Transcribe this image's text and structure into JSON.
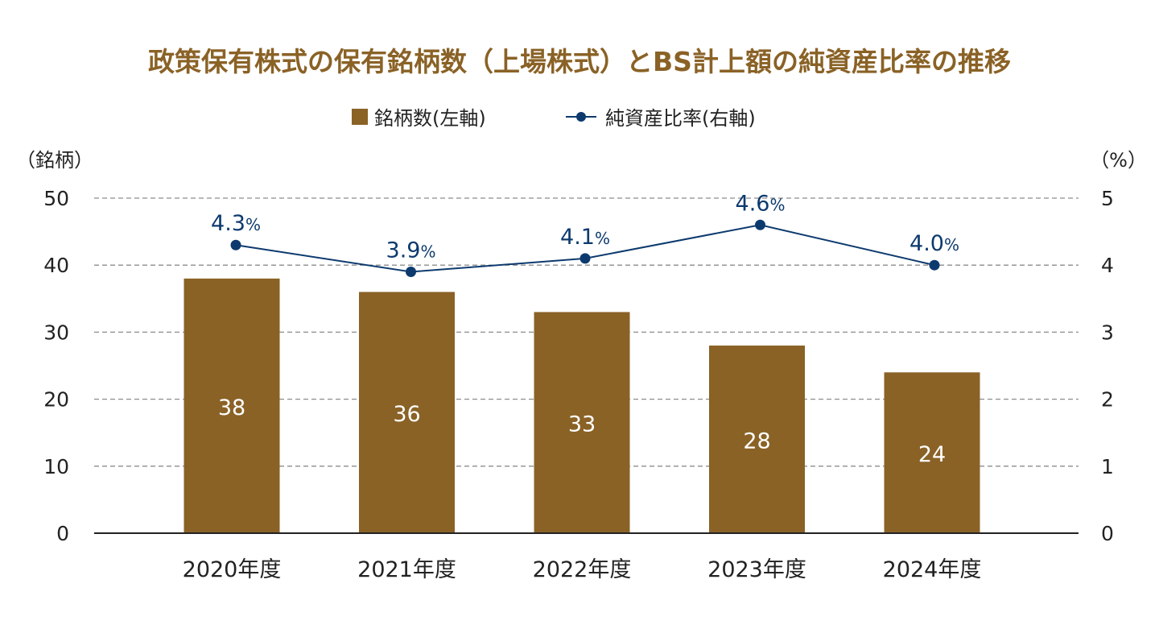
{
  "colors": {
    "title": "#8a6226",
    "bar": "#8a6226",
    "line": "#0d3a6e",
    "grid": "#8c8c8c",
    "axis": "#222222",
    "text": "#222222",
    "bar_label": "#ffffff"
  },
  "chart_data": {
    "type": "bar",
    "title": "政策保有株式の保有銘柄数（上場株式）とBS計上額の純資産比率の推移",
    "categories": [
      "2020年度",
      "2021年度",
      "2022年度",
      "2023年度",
      "2024年度"
    ],
    "legend": {
      "placement": "top-center",
      "items": [
        {
          "label": "銘柄数(左軸)",
          "marker": "square"
        },
        {
          "label": "純資産比率(右軸)",
          "marker": "line-dot"
        }
      ]
    },
    "y_left": {
      "unit_label": "（銘柄）",
      "range": [
        0,
        50
      ],
      "ticks": [
        "0",
        "10",
        "20",
        "30",
        "40",
        "50"
      ]
    },
    "y_right": {
      "unit_label": "（%）",
      "range": [
        0,
        5
      ],
      "ticks": [
        "0",
        "1",
        "2",
        "3",
        "4",
        "5"
      ]
    },
    "grid": true,
    "series": [
      {
        "type": "bar",
        "axis": "left",
        "values": [
          38,
          36,
          33,
          28,
          24
        ],
        "labels": [
          "38",
          "36",
          "33",
          "28",
          "24"
        ]
      },
      {
        "type": "line",
        "axis": "right",
        "values": [
          4.3,
          3.9,
          4.1,
          4.6,
          4.0
        ],
        "labels": [
          "4.3",
          "3.9",
          "4.1",
          "4.6",
          "4.0"
        ],
        "label_suffix": "%"
      }
    ]
  }
}
